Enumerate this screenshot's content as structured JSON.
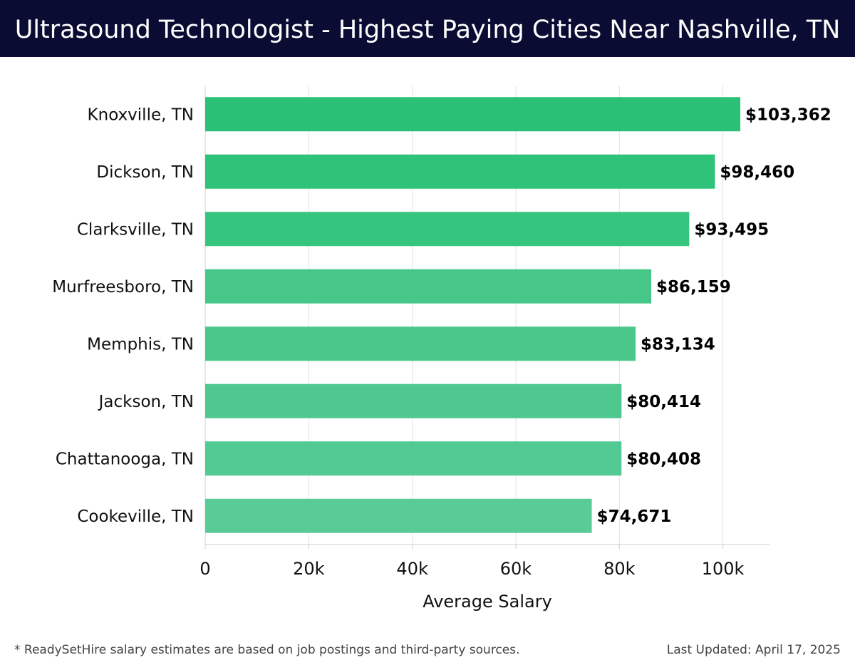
{
  "header": {
    "title": "Ultrasound Technologist - Highest Paying Cities Near Nashville, TN"
  },
  "chart_data": {
    "type": "bar",
    "orientation": "horizontal",
    "title": "Ultrasound Technologist - Highest Paying Cities Near Nashville, TN",
    "xlabel": "Average Salary",
    "ylabel": "",
    "categories": [
      "Knoxville, TN",
      "Dickson, TN",
      "Clarksville, TN",
      "Murfreesboro, TN",
      "Memphis, TN",
      "Jackson, TN",
      "Chattanooga, TN",
      "Cookeville, TN"
    ],
    "values": [
      103362,
      98460,
      93495,
      86159,
      83134,
      80414,
      80408,
      74671
    ],
    "value_labels": [
      "$103,362",
      "$98,460",
      "$93,495",
      "$86,159",
      "$83,134",
      "$80,414",
      "$80,408",
      "$74,671"
    ],
    "xlim": [
      0,
      109000
    ],
    "xticks": [
      0,
      20000,
      40000,
      60000,
      80000,
      100000
    ],
    "xtick_labels": [
      "0",
      "20k",
      "40k",
      "60k",
      "80k",
      "100k"
    ],
    "grid": true,
    "bar_colors": [
      "#2ac176",
      "#2ec379",
      "#36c57f",
      "#47c68a",
      "#4bc78c",
      "#4fc88f",
      "#53ca93",
      "#59cb97"
    ]
  },
  "footer": {
    "note": "* ReadySetHire salary estimates are based on job postings and third-party sources.",
    "updated": "Last Updated: April 17, 2025"
  }
}
